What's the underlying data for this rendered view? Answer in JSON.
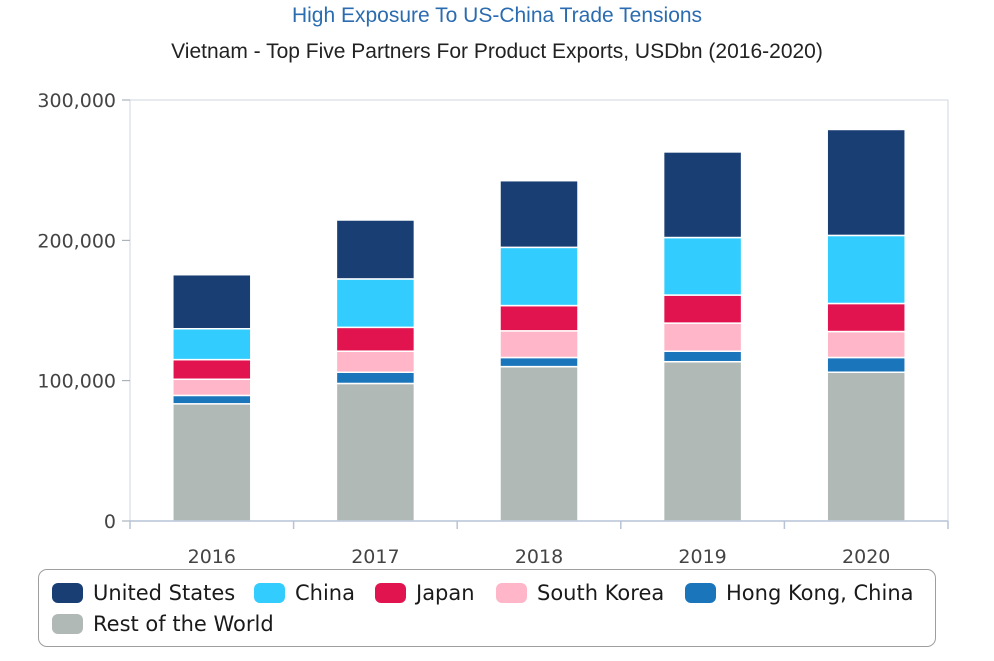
{
  "chart_data": {
    "type": "bar",
    "stacked": true,
    "title": "High Exposure To US-China Trade Tensions",
    "subtitle": "Vietnam - Top Five Partners For Product Exports, USDbn (2016-2020)",
    "categories": [
      "2016",
      "2017",
      "2018",
      "2019",
      "2020"
    ],
    "ylim": [
      0,
      300000
    ],
    "yticks": [
      0,
      100000,
      200000,
      300000
    ],
    "ytick_labels": [
      "0",
      "100,000",
      "200,000",
      "300,000"
    ],
    "series": [
      {
        "name": "Rest of the World",
        "color": "#b1b9b6",
        "values": [
          83500,
          98000,
          110000,
          113500,
          106000
        ]
      },
      {
        "name": "Hong Kong, China",
        "color": "#1b75bb",
        "values": [
          6000,
          8000,
          6500,
          7500,
          10500
        ]
      },
      {
        "name": "South Korea",
        "color": "#ffb6c8",
        "values": [
          11500,
          15000,
          19000,
          20000,
          18500
        ]
      },
      {
        "name": "Japan",
        "color": "#e2144f",
        "values": [
          14000,
          17000,
          18000,
          20000,
          20000
        ]
      },
      {
        "name": "China",
        "color": "#33ccff",
        "values": [
          22000,
          34500,
          41500,
          41000,
          48500
        ]
      },
      {
        "name": "United States",
        "color": "#193e73",
        "values": [
          38500,
          42000,
          47500,
          61000,
          75500
        ]
      }
    ],
    "legend": {
      "position": "bottom",
      "items": [
        "United States",
        "China",
        "Japan",
        "South Korea",
        "Hong Kong, China",
        "Rest of the World"
      ]
    },
    "grid": false
  }
}
